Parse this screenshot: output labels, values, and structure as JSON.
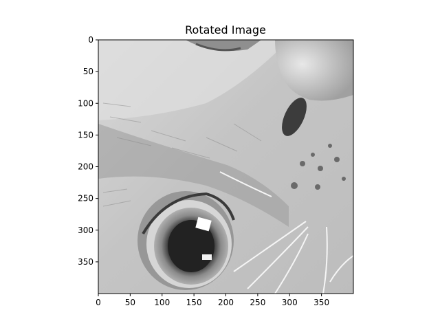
{
  "chart_data": {
    "type": "image",
    "title": "Rotated Image",
    "colormap": "gray",
    "xlim": [
      0,
      400
    ],
    "ylim": [
      400,
      0
    ],
    "xticks": [
      0,
      50,
      100,
      150,
      200,
      250,
      300,
      350
    ],
    "yticks": [
      0,
      50,
      100,
      150,
      200,
      250,
      300,
      350
    ],
    "content": "grayscale close-up photo of a cat's eye, nose and whiskers"
  }
}
